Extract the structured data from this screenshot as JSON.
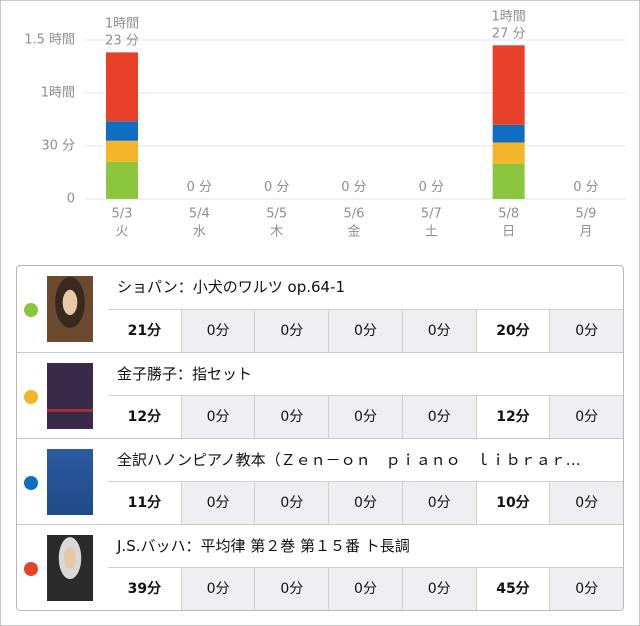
{
  "chart_data": {
    "type": "stacked-bar",
    "categories": [
      "5/3",
      "5/4",
      "5/5",
      "5/6",
      "5/7",
      "5/8",
      "5/9"
    ],
    "weekdays": [
      "火",
      "水",
      "木",
      "金",
      "土",
      "日",
      "月"
    ],
    "ylim": [
      0,
      96
    ],
    "yticks": [
      0,
      {
        "value": 30,
        "label": "30 分"
      },
      {
        "value": 60,
        "label": "1時間"
      },
      {
        "value": 90,
        "label": "1.5 時間"
      }
    ],
    "grid": true,
    "series": [
      {
        "name": "ショパン：小犬のワルツ op.64-1",
        "color": "#8cc63f",
        "values": [
          21,
          0,
          0,
          0,
          0,
          20,
          0
        ],
        "value_labels": [
          "21分",
          "0分",
          "0分",
          "0分",
          "0分",
          "20分",
          "0分"
        ]
      },
      {
        "name": "金子勝子：指セット",
        "color": "#f5b52a",
        "values": [
          12,
          0,
          0,
          0,
          0,
          12,
          0
        ],
        "value_labels": [
          "12分",
          "0分",
          "0分",
          "0分",
          "0分",
          "12分",
          "0分"
        ]
      },
      {
        "name": "全訳ハノンピアノ教本（Ｚｅｎ－ｏｎ　ｐｉａｎｏ　ｌｉｂｒａｒ…",
        "color": "#0f6ec2",
        "values": [
          11,
          0,
          0,
          0,
          0,
          10,
          0
        ],
        "value_labels": [
          "11分",
          "0分",
          "0分",
          "0分",
          "0分",
          "10分",
          "0分"
        ]
      },
      {
        "name": "J.S.バッハ：平均律 第２巻 第１５番 ト長調",
        "color": "#e8412a",
        "values": [
          39,
          0,
          0,
          0,
          0,
          45,
          0
        ],
        "value_labels": [
          "39分",
          "0分",
          "0分",
          "0分",
          "0分",
          "45分",
          "0分"
        ]
      }
    ],
    "totals": {
      "values": [
        83,
        0,
        0,
        0,
        0,
        87,
        0
      ],
      "value_labels": [
        "1時間\n23 分",
        "0 分",
        "0 分",
        "0 分",
        "0 分",
        "1時間\n27 分",
        "0 分"
      ]
    }
  }
}
